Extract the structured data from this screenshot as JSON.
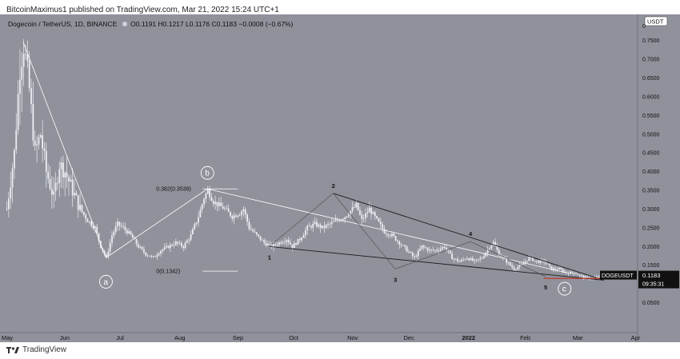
{
  "header": {
    "publisher_line": "BitcoinMaximus1 published on TradingView.com, Mar 21, 2022 15:24 UTC+1"
  },
  "legend": {
    "symbol": "Dogecoin / TetherUS, 1D, BINANCE",
    "o_label": "O",
    "o_value": "0.1191",
    "h_label": "H",
    "h_value": "0.1217",
    "l_label": "L",
    "l_value": "0.1176",
    "c_label": "C",
    "c_value": "0.1183",
    "change": "−0.0008 (−0.67%)"
  },
  "footer": {
    "brand": "TradingView"
  },
  "colors": {
    "background": "#8f929b",
    "candle": "#eceef2",
    "fib": "#ffffff",
    "trend": "#1a1a1a",
    "support": "#c0392b"
  },
  "chart_data": {
    "type": "candlestick",
    "title": "Dogecoin / TetherUS, 1D, BINANCE",
    "currency": "USDT",
    "x_ticks": [
      {
        "t": 0,
        "label": "May"
      },
      {
        "t": 31,
        "label": "Jun"
      },
      {
        "t": 61,
        "label": "Jul"
      },
      {
        "t": 92,
        "label": "Aug"
      },
      {
        "t": 123,
        "label": "Sep"
      },
      {
        "t": 153,
        "label": "Oct"
      },
      {
        "t": 184,
        "label": "Nov"
      },
      {
        "t": 214,
        "label": "Dec"
      },
      {
        "t": 245,
        "label": "2022"
      },
      {
        "t": 276,
        "label": "Feb"
      },
      {
        "t": 304,
        "label": "Mar"
      },
      {
        "t": 335,
        "label": "Apr"
      }
    ],
    "y_ticks": [
      "0.7500",
      "0.7000",
      "0.6500",
      "0.6000",
      "0.5500",
      "0.5000",
      "0.4500",
      "0.4000",
      "0.3500",
      "0.3000",
      "0.2500",
      "0.2000",
      "0.1500",
      "0.1000",
      "0.0500"
    ],
    "y_range": [
      0.0,
      0.8
    ],
    "price_path": [
      [
        0,
        0.3
      ],
      [
        4,
        0.45
      ],
      [
        7,
        0.68
      ],
      [
        9,
        0.74
      ],
      [
        12,
        0.62
      ],
      [
        15,
        0.45
      ],
      [
        18,
        0.5
      ],
      [
        21,
        0.4
      ],
      [
        25,
        0.33
      ],
      [
        28,
        0.42
      ],
      [
        31,
        0.4
      ],
      [
        35,
        0.35
      ],
      [
        39,
        0.3
      ],
      [
        43,
        0.27
      ],
      [
        47,
        0.25
      ],
      [
        50,
        0.2
      ],
      [
        53,
        0.17
      ],
      [
        56,
        0.23
      ],
      [
        59,
        0.26
      ],
      [
        62,
        0.25
      ],
      [
        66,
        0.23
      ],
      [
        70,
        0.2
      ],
      [
        74,
        0.18
      ],
      [
        78,
        0.17
      ],
      [
        82,
        0.19
      ],
      [
        86,
        0.2
      ],
      [
        90,
        0.21
      ],
      [
        94,
        0.2
      ],
      [
        98,
        0.23
      ],
      [
        102,
        0.28
      ],
      [
        105,
        0.33
      ],
      [
        107,
        0.35
      ],
      [
        110,
        0.32
      ],
      [
        113,
        0.31
      ],
      [
        116,
        0.3
      ],
      [
        120,
        0.28
      ],
      [
        124,
        0.29
      ],
      [
        126,
        0.3
      ],
      [
        129,
        0.25
      ],
      [
        133,
        0.23
      ],
      [
        137,
        0.21
      ],
      [
        141,
        0.2
      ],
      [
        145,
        0.21
      ],
      [
        149,
        0.22
      ],
      [
        152,
        0.2
      ],
      [
        156,
        0.22
      ],
      [
        160,
        0.25
      ],
      [
        164,
        0.26
      ],
      [
        168,
        0.25
      ],
      [
        172,
        0.26
      ],
      [
        176,
        0.27
      ],
      [
        180,
        0.28
      ],
      [
        184,
        0.3
      ],
      [
        186,
        0.31
      ],
      [
        189,
        0.27
      ],
      [
        193,
        0.3
      ],
      [
        197,
        0.27
      ],
      [
        201,
        0.24
      ],
      [
        205,
        0.23
      ],
      [
        209,
        0.21
      ],
      [
        213,
        0.19
      ],
      [
        217,
        0.17
      ],
      [
        221,
        0.2
      ],
      [
        225,
        0.19
      ],
      [
        229,
        0.19
      ],
      [
        233,
        0.2
      ],
      [
        237,
        0.17
      ],
      [
        241,
        0.16
      ],
      [
        245,
        0.17
      ],
      [
        249,
        0.16
      ],
      [
        253,
        0.17
      ],
      [
        257,
        0.2
      ],
      [
        259,
        0.21
      ],
      [
        262,
        0.18
      ],
      [
        266,
        0.16
      ],
      [
        270,
        0.14
      ],
      [
        274,
        0.15
      ],
      [
        278,
        0.17
      ],
      [
        282,
        0.16
      ],
      [
        286,
        0.16
      ],
      [
        290,
        0.14
      ],
      [
        294,
        0.14
      ],
      [
        298,
        0.13
      ],
      [
        302,
        0.13
      ],
      [
        306,
        0.12
      ],
      [
        310,
        0.115
      ],
      [
        314,
        0.118
      ],
      [
        318,
        0.12
      ]
    ],
    "wave_points": [
      {
        "label": "a",
        "t": 53,
        "price": 0.17
      },
      {
        "label": "b",
        "t": 107,
        "price": 0.3539
      },
      {
        "label": "c",
        "t": 298,
        "price": 0.13
      }
    ],
    "fib_levels": [
      {
        "label": "0.382(0.3539)",
        "price": 0.3539
      },
      {
        "label": "0(0.1342)",
        "price": 0.1342
      }
    ],
    "subwaves": [
      {
        "label": "1",
        "t": 140,
        "price": 0.2
      },
      {
        "label": "2",
        "t": 174,
        "price": 0.342
      },
      {
        "label": "3",
        "t": 207,
        "price": 0.14
      },
      {
        "label": "4",
        "t": 247,
        "price": 0.213
      },
      {
        "label": "5",
        "t": 287,
        "price": 0.12
      }
    ],
    "wedge_lines": [
      {
        "from": [
          174,
          0.342
        ],
        "to": [
          318,
          0.11
        ]
      },
      {
        "from": [
          140,
          0.2
        ],
        "to": [
          318,
          0.11
        ]
      }
    ],
    "support_line": {
      "from_t": 286,
      "to_t": 324,
      "price": 0.115
    },
    "last_price_tag": {
      "symbol": "DOGEUSDT",
      "price": "0.1183",
      "countdown": "09:35:31"
    }
  }
}
